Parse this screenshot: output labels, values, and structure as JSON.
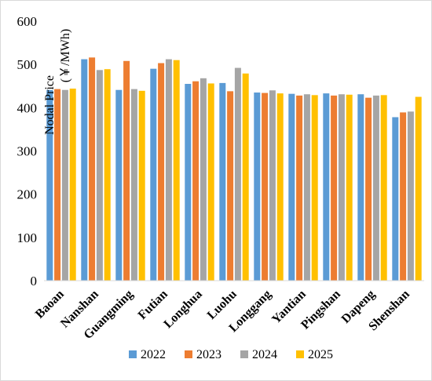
{
  "chart_data": {
    "type": "bar",
    "ylabel_line1": "Nodal Price",
    "ylabel_line2": "(￥/MWh)",
    "ylim": [
      0,
      600
    ],
    "yticks": [
      "0",
      "100",
      "200",
      "300",
      "400",
      "500",
      "600"
    ],
    "grid": false,
    "legend_position": "bottom",
    "categories": [
      "Baoan",
      "Nanshan",
      "Guangming",
      "Futian",
      "Longhua",
      "Luohu",
      "Longgang",
      "Yantian",
      "Pingshan",
      "Dapeng",
      "Shenshan"
    ],
    "series": [
      {
        "name": "2022",
        "color": "#5b9bd5",
        "values": [
          441,
          512,
          441,
          490,
          455,
          457,
          435,
          432,
          433,
          431,
          378
        ]
      },
      {
        "name": "2023",
        "color": "#ed7d31",
        "values": [
          443,
          516,
          508,
          503,
          461,
          438,
          434,
          428,
          428,
          423,
          389
        ]
      },
      {
        "name": "2024",
        "color": "#a5a5a5",
        "values": [
          441,
          487,
          443,
          512,
          468,
          492,
          440,
          431,
          431,
          428,
          391
        ]
      },
      {
        "name": "2025",
        "color": "#ffc000",
        "values": [
          444,
          489,
          439,
          510,
          456,
          479,
          433,
          429,
          430,
          429,
          425
        ]
      }
    ]
  }
}
